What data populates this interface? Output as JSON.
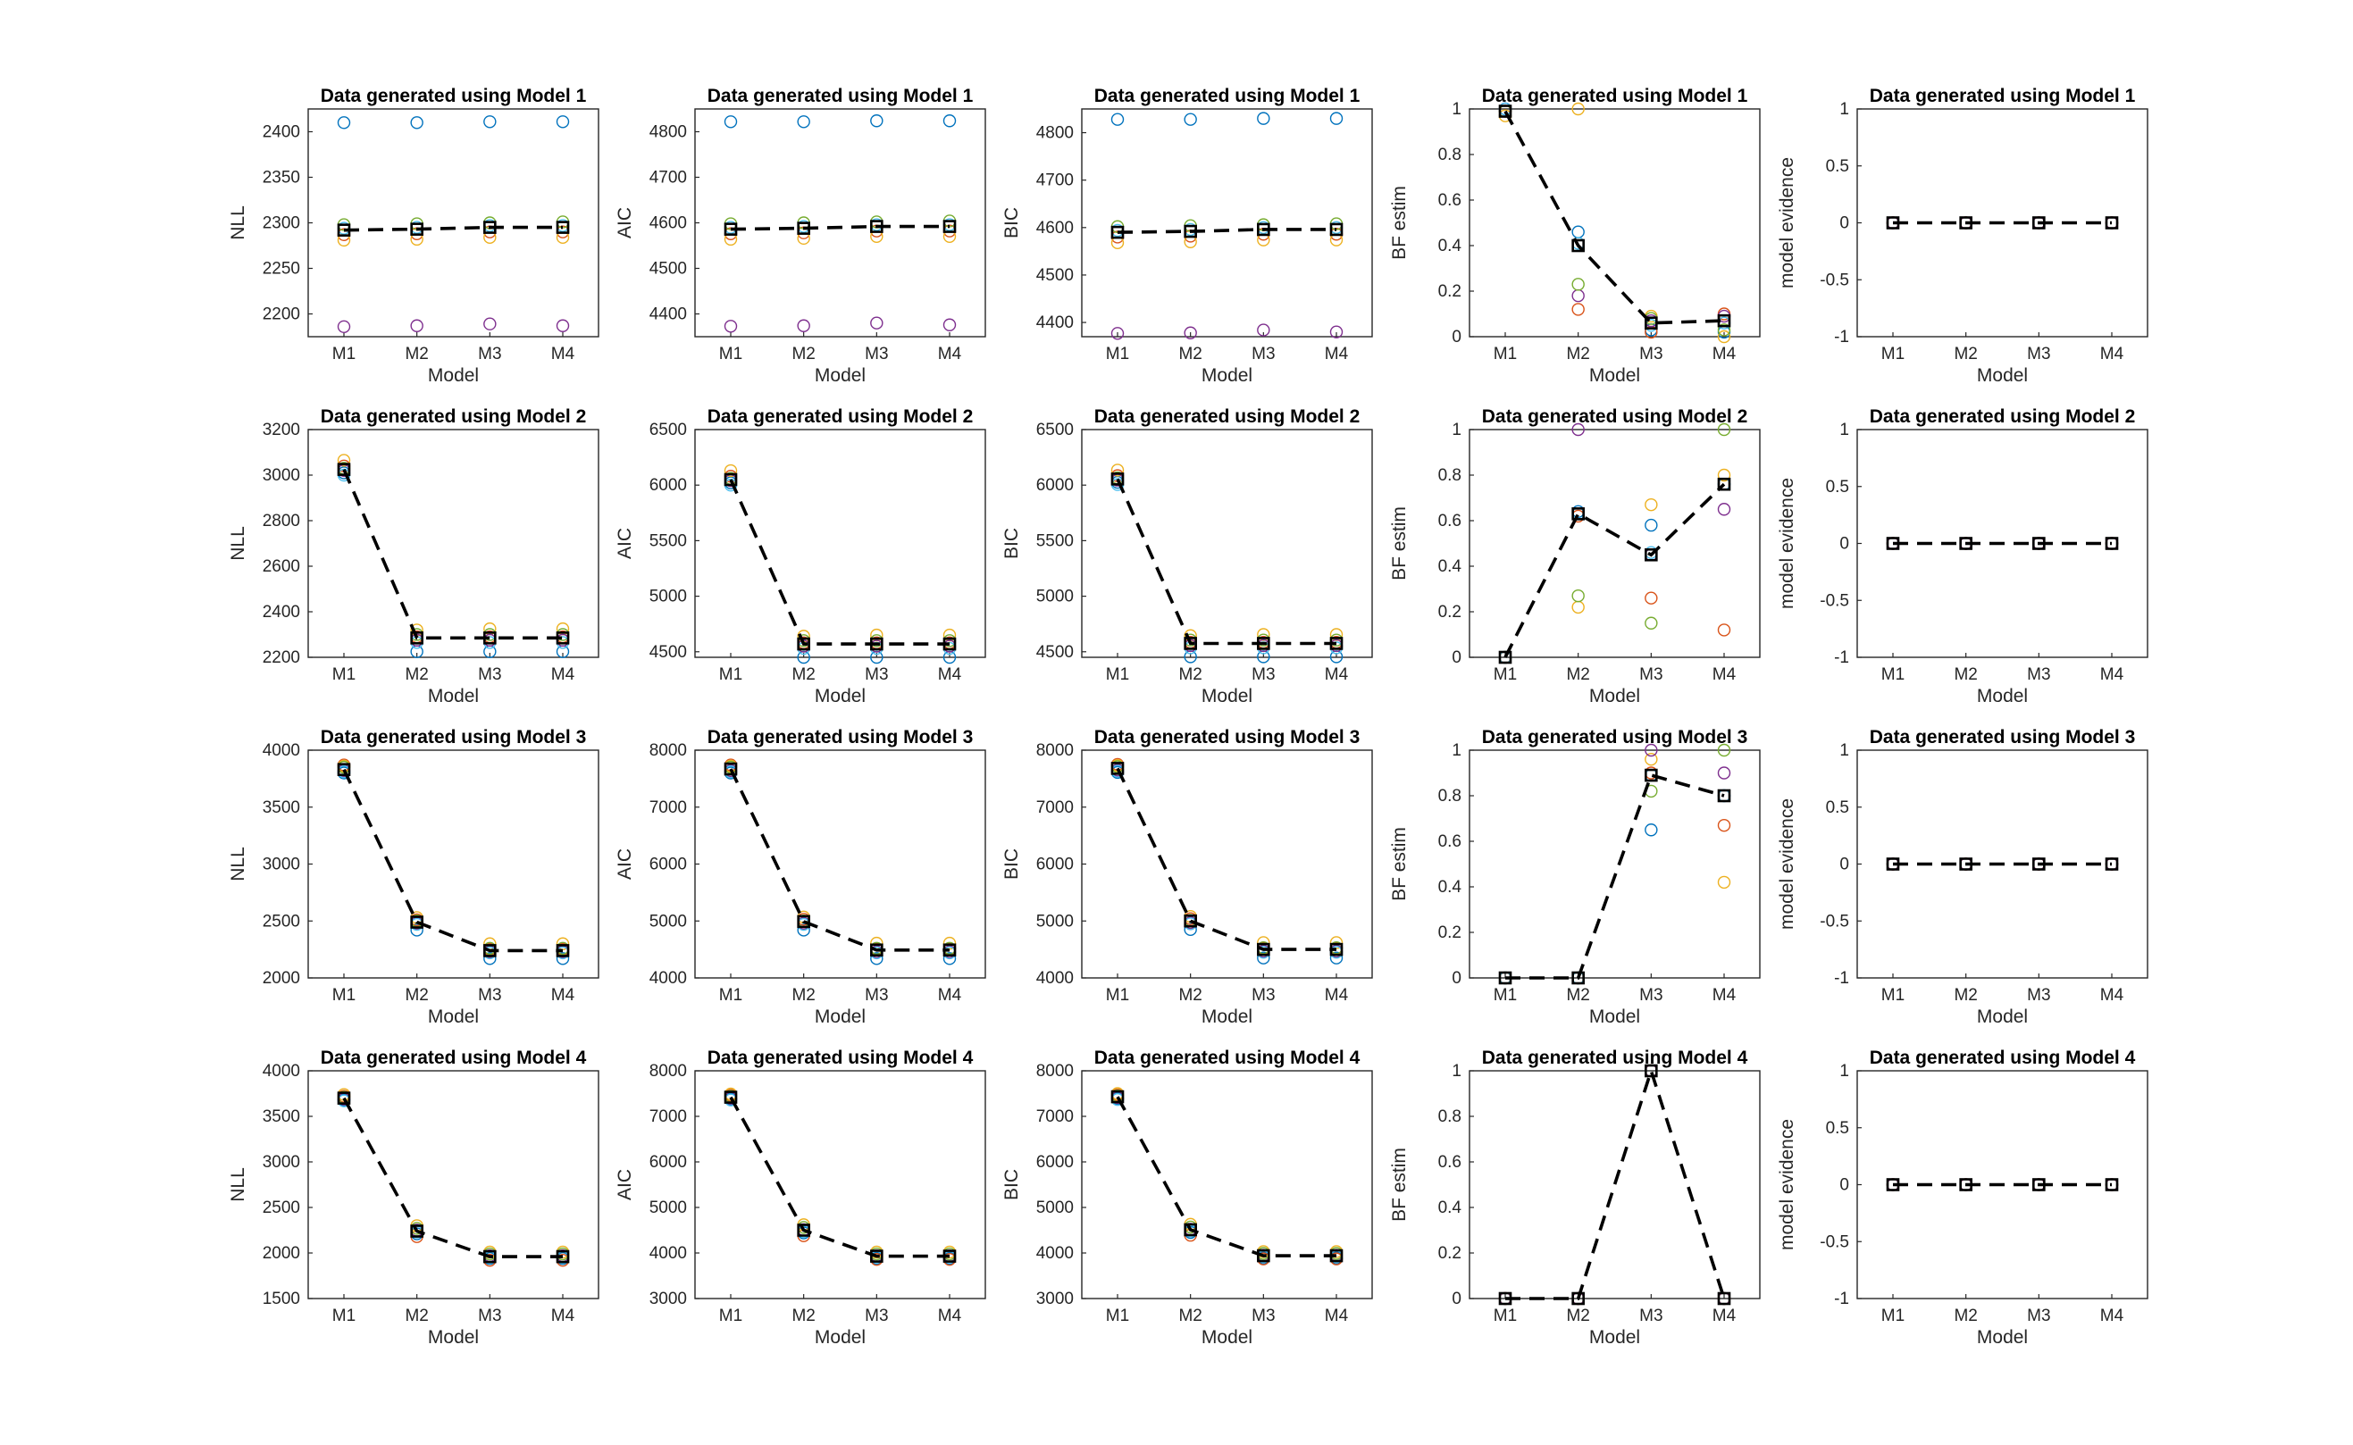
{
  "figure": {
    "title_template": "Data generated using Model",
    "xlabel": "Model",
    "categories": [
      "M1",
      "M2",
      "M3",
      "M4"
    ],
    "rows": [
      "1",
      "2",
      "3",
      "4"
    ],
    "series_colors": [
      "#0072BD",
      "#D95319",
      "#EDB120",
      "#7E2F8E",
      "#77AC30",
      "#4DBEEE"
    ],
    "mean_color": "#000000",
    "mean_marker": "square",
    "mean_line": "dashed"
  },
  "chart_data": [
    {
      "type": "scatter",
      "row": 1,
      "title": "Data generated using Model 1",
      "ylabel": "NLL",
      "xlabel": "Model",
      "categories": [
        "M1",
        "M2",
        "M3",
        "M4"
      ],
      "ylim": [
        2175,
        2425
      ],
      "yticks": [
        2200,
        2250,
        2300,
        2350,
        2400
      ],
      "mean": [
        2292,
        2293,
        2295,
        2295
      ],
      "points": [
        [
          2410,
          2410,
          2411,
          2411
        ],
        [
          2287,
          2288,
          2290,
          2290
        ],
        [
          2281,
          2282,
          2284,
          2284
        ],
        [
          2186,
          2187,
          2189,
          2187
        ],
        [
          2298,
          2299,
          2300,
          2301
        ],
        [
          2294,
          2295,
          2297,
          2297
        ]
      ]
    },
    {
      "type": "scatter",
      "row": 1,
      "title": "Data generated using Model 1",
      "ylabel": "AIC",
      "xlabel": "Model",
      "categories": [
        "M1",
        "M2",
        "M3",
        "M4"
      ],
      "ylim": [
        4350,
        4850
      ],
      "yticks": [
        4400,
        4500,
        4600,
        4700,
        4800
      ],
      "mean": [
        4586,
        4588,
        4592,
        4592
      ],
      "points": [
        [
          4822,
          4822,
          4824,
          4824
        ],
        [
          4576,
          4578,
          4582,
          4582
        ],
        [
          4564,
          4566,
          4570,
          4570
        ],
        [
          4373,
          4374,
          4380,
          4376
        ],
        [
          4598,
          4600,
          4602,
          4604
        ],
        [
          4590,
          4592,
          4596,
          4596
        ]
      ]
    },
    {
      "type": "scatter",
      "row": 1,
      "title": "Data generated using Model 1",
      "ylabel": "BIC",
      "xlabel": "Model",
      "categories": [
        "M1",
        "M2",
        "M3",
        "M4"
      ],
      "ylim": [
        4370,
        4850
      ],
      "yticks": [
        4400,
        4500,
        4600,
        4700,
        4800
      ],
      "mean": [
        4590,
        4592,
        4596,
        4596
      ],
      "points": [
        [
          4828,
          4828,
          4830,
          4830
        ],
        [
          4580,
          4582,
          4586,
          4586
        ],
        [
          4568,
          4570,
          4574,
          4574
        ],
        [
          4377,
          4378,
          4384,
          4380
        ],
        [
          4602,
          4604,
          4606,
          4608
        ],
        [
          4594,
          4596,
          4600,
          4600
        ]
      ]
    },
    {
      "type": "scatter",
      "row": 1,
      "title": "Data generated using Model 1",
      "ylabel": "BF estim",
      "xlabel": "Model",
      "categories": [
        "M1",
        "M2",
        "M3",
        "M4"
      ],
      "ylim": [
        0,
        1
      ],
      "yticks": [
        0,
        0.2,
        0.4,
        0.6,
        0.8,
        1
      ],
      "mean": [
        0.99,
        0.4,
        0.06,
        0.07
      ],
      "points": [
        [
          1.0,
          0.46,
          0.03,
          0.02
        ],
        [
          0.99,
          0.12,
          0.02,
          0.1
        ],
        [
          0.97,
          1.0,
          0.09,
          0.0
        ],
        [
          1.0,
          0.18,
          0.07,
          0.09
        ],
        [
          0.99,
          0.23,
          0.08,
          0.03
        ],
        [
          1.0,
          0.41,
          0.05,
          0.06
        ]
      ]
    },
    {
      "type": "scatter",
      "row": 1,
      "title": "Data generated using Model 1",
      "ylabel": "model evidence",
      "xlabel": "Model",
      "categories": [
        "M1",
        "M2",
        "M3",
        "M4"
      ],
      "ylim": [
        -1,
        1
      ],
      "yticks": [
        -1,
        -0.5,
        0,
        0.5,
        1
      ],
      "mean": [
        0,
        0,
        0,
        0
      ],
      "points": [
        [
          0,
          0,
          0,
          0
        ],
        [
          0,
          0,
          0,
          0
        ],
        [
          0,
          0,
          0,
          0
        ],
        [
          0,
          0,
          0,
          0
        ]
      ]
    },
    {
      "type": "scatter",
      "row": 2,
      "title": "Data generated using Model 2",
      "ylabel": "NLL",
      "xlabel": "Model",
      "categories": [
        "M1",
        "M2",
        "M3",
        "M4"
      ],
      "ylim": [
        2200,
        3200
      ],
      "yticks": [
        2200,
        2400,
        2600,
        2800,
        3000,
        3200
      ],
      "mean": [
        3025,
        2285,
        2285,
        2285
      ],
      "points": [
        [
          3010,
          2225,
          2225,
          2225
        ],
        [
          3040,
          2290,
          2290,
          2290
        ],
        [
          3065,
          2320,
          2325,
          2325
        ],
        [
          3020,
          2275,
          2275,
          2275
        ],
        [
          3030,
          2300,
          2300,
          2300
        ],
        [
          3000,
          2265,
          2265,
          2265
        ]
      ]
    },
    {
      "type": "scatter",
      "row": 2,
      "title": "Data generated using Model 2",
      "ylabel": "AIC",
      "xlabel": "Model",
      "categories": [
        "M1",
        "M2",
        "M3",
        "M4"
      ],
      "ylim": [
        4450,
        6500
      ],
      "yticks": [
        4500,
        5000,
        5500,
        6000,
        6500
      ],
      "mean": [
        6050,
        4570,
        4570,
        4570
      ],
      "points": [
        [
          6020,
          4450,
          4450,
          4450
        ],
        [
          6080,
          4580,
          4580,
          4580
        ],
        [
          6130,
          4640,
          4650,
          4650
        ],
        [
          6040,
          4550,
          4550,
          4550
        ],
        [
          6060,
          4600,
          4600,
          4600
        ],
        [
          6000,
          4530,
          4530,
          4530
        ]
      ]
    },
    {
      "type": "scatter",
      "row": 2,
      "title": "Data generated using Model 2",
      "ylabel": "BIC",
      "xlabel": "Model",
      "categories": [
        "M1",
        "M2",
        "M3",
        "M4"
      ],
      "ylim": [
        4450,
        6500
      ],
      "yticks": [
        4500,
        5000,
        5500,
        6000,
        6500
      ],
      "mean": [
        6055,
        4575,
        4575,
        4575
      ],
      "points": [
        [
          6025,
          4455,
          4455,
          4455
        ],
        [
          6085,
          4585,
          4585,
          4585
        ],
        [
          6135,
          4645,
          4655,
          4655
        ],
        [
          6045,
          4555,
          4555,
          4555
        ],
        [
          6065,
          4605,
          4605,
          4605
        ],
        [
          6005,
          4535,
          4535,
          4535
        ]
      ]
    },
    {
      "type": "scatter",
      "row": 2,
      "title": "Data generated using Model 2",
      "ylabel": "BF estim",
      "xlabel": "Model",
      "categories": [
        "M1",
        "M2",
        "M3",
        "M4"
      ],
      "ylim": [
        0,
        1
      ],
      "yticks": [
        0,
        0.2,
        0.4,
        0.6,
        0.8,
        1
      ],
      "mean": [
        0.0,
        0.63,
        0.45,
        0.76
      ],
      "points": [
        [
          0,
          0.64,
          0.58,
          0.76
        ],
        [
          0,
          0.62,
          0.26,
          0.12
        ],
        [
          0,
          0.22,
          0.67,
          0.8
        ],
        [
          0,
          1.0,
          0.45,
          0.65
        ],
        [
          0,
          0.27,
          0.15,
          1.0
        ],
        [
          0,
          0.63,
          0.46,
          0.76
        ]
      ]
    },
    {
      "type": "scatter",
      "row": 2,
      "title": "Data generated using Model 2",
      "ylabel": "model evidence",
      "xlabel": "Model",
      "categories": [
        "M1",
        "M2",
        "M3",
        "M4"
      ],
      "ylim": [
        -1,
        1
      ],
      "yticks": [
        -1,
        -0.5,
        0,
        0.5,
        1
      ],
      "mean": [
        0,
        0,
        0,
        0
      ],
      "points": [
        [
          0,
          0,
          0,
          0
        ],
        [
          0,
          0,
          0,
          0
        ],
        [
          0,
          0,
          0,
          0
        ],
        [
          0,
          0,
          0,
          0
        ]
      ]
    },
    {
      "type": "scatter",
      "row": 3,
      "title": "Data generated using Model 3",
      "ylabel": "NLL",
      "xlabel": "Model",
      "categories": [
        "M1",
        "M2",
        "M3",
        "M4"
      ],
      "ylim": [
        2000,
        4000
      ],
      "yticks": [
        2000,
        2500,
        3000,
        3500,
        4000
      ],
      "mean": [
        3830,
        2490,
        2240,
        2240
      ],
      "points": [
        [
          3800,
          2420,
          2170,
          2170
        ],
        [
          3870,
          2510,
          2250,
          2250
        ],
        [
          3860,
          2530,
          2300,
          2300
        ],
        [
          3820,
          2480,
          2230,
          2230
        ],
        [
          3850,
          2500,
          2260,
          2260
        ],
        [
          3810,
          2470,
          2220,
          2220
        ]
      ]
    },
    {
      "type": "scatter",
      "row": 3,
      "title": "Data generated using Model 3",
      "ylabel": "AIC",
      "xlabel": "Model",
      "categories": [
        "M1",
        "M2",
        "M3",
        "M4"
      ],
      "ylim": [
        4000,
        8000
      ],
      "yticks": [
        4000,
        5000,
        6000,
        7000,
        8000
      ],
      "mean": [
        7670,
        4990,
        4490,
        4490
      ],
      "points": [
        [
          7600,
          4840,
          4340,
          4340
        ],
        [
          7740,
          5030,
          4510,
          4510
        ],
        [
          7720,
          5070,
          4610,
          4610
        ],
        [
          7640,
          4960,
          4460,
          4460
        ],
        [
          7700,
          5000,
          4520,
          4520
        ],
        [
          7620,
          4940,
          4440,
          4440
        ]
      ]
    },
    {
      "type": "scatter",
      "row": 3,
      "title": "Data generated using Model 3",
      "ylabel": "BIC",
      "xlabel": "Model",
      "categories": [
        "M1",
        "M2",
        "M3",
        "M4"
      ],
      "ylim": [
        4000,
        8000
      ],
      "yticks": [
        4000,
        5000,
        6000,
        7000,
        8000
      ],
      "mean": [
        7680,
        5000,
        4500,
        4500
      ],
      "points": [
        [
          7610,
          4850,
          4350,
          4350
        ],
        [
          7750,
          5040,
          4520,
          4520
        ],
        [
          7730,
          5080,
          4620,
          4620
        ],
        [
          7650,
          4970,
          4470,
          4470
        ],
        [
          7710,
          5010,
          4530,
          4530
        ],
        [
          7630,
          4950,
          4450,
          4450
        ]
      ]
    },
    {
      "type": "scatter",
      "row": 3,
      "title": "Data generated using Model 3",
      "ylabel": "BF estim",
      "xlabel": "Model",
      "categories": [
        "M1",
        "M2",
        "M3",
        "M4"
      ],
      "ylim": [
        0,
        1
      ],
      "yticks": [
        0,
        0.2,
        0.4,
        0.6,
        0.8,
        1
      ],
      "mean": [
        0.0,
        0.0,
        0.89,
        0.8
      ],
      "points": [
        [
          0,
          0,
          0.65,
          0.8
        ],
        [
          0,
          0,
          0.9,
          0.67
        ],
        [
          0,
          0,
          0.96,
          0.42
        ],
        [
          0,
          0,
          1.0,
          0.9
        ],
        [
          0,
          0,
          0.82,
          1.0
        ],
        [
          0,
          0,
          0.89,
          0.8
        ]
      ]
    },
    {
      "type": "scatter",
      "row": 3,
      "title": "Data generated using Model 3",
      "ylabel": "model evidence",
      "xlabel": "Model",
      "categories": [
        "M1",
        "M2",
        "M3",
        "M4"
      ],
      "ylim": [
        -1,
        1
      ],
      "yticks": [
        -1,
        -0.5,
        0,
        0.5,
        1
      ],
      "mean": [
        0,
        0,
        0,
        0
      ],
      "points": [
        [
          0,
          0,
          0,
          0
        ],
        [
          0,
          0,
          0,
          0
        ],
        [
          0,
          0,
          0,
          0
        ],
        [
          0,
          0,
          0,
          0
        ]
      ]
    },
    {
      "type": "scatter",
      "row": 4,
      "title": "Data generated using Model 4",
      "ylabel": "NLL",
      "xlabel": "Model",
      "categories": [
        "M1",
        "M2",
        "M3",
        "M4"
      ],
      "ylim": [
        1500,
        4000
      ],
      "yticks": [
        1500,
        2000,
        2500,
        3000,
        3500,
        4000
      ],
      "mean": [
        3700,
        2240,
        1960,
        1960
      ],
      "points": [
        [
          3680,
          2210,
          1940,
          1940
        ],
        [
          3720,
          2180,
          1920,
          1920
        ],
        [
          3740,
          2300,
          2010,
          2010
        ],
        [
          3690,
          2250,
          1970,
          1970
        ],
        [
          3710,
          2270,
          1990,
          1990
        ],
        [
          3670,
          2230,
          1950,
          1950
        ]
      ]
    },
    {
      "type": "scatter",
      "row": 4,
      "title": "Data generated using Model 4",
      "ylabel": "AIC",
      "xlabel": "Model",
      "categories": [
        "M1",
        "M2",
        "M3",
        "M4"
      ],
      "ylim": [
        3000,
        8000
      ],
      "yticks": [
        3000,
        4000,
        5000,
        6000,
        7000,
        8000
      ],
      "mean": [
        7420,
        4500,
        3930,
        3930
      ],
      "points": [
        [
          7380,
          4440,
          3880,
          3880
        ],
        [
          7460,
          4380,
          3860,
          3860
        ],
        [
          7490,
          4620,
          4020,
          4020
        ],
        [
          7400,
          4510,
          3940,
          3940
        ],
        [
          7440,
          4560,
          3980,
          3980
        ],
        [
          7360,
          4470,
          3910,
          3910
        ]
      ]
    },
    {
      "type": "scatter",
      "row": 4,
      "title": "Data generated using Model 4",
      "ylabel": "BIC",
      "xlabel": "Model",
      "categories": [
        "M1",
        "M2",
        "M3",
        "M4"
      ],
      "ylim": [
        3000,
        8000
      ],
      "yticks": [
        3000,
        4000,
        5000,
        6000,
        7000,
        8000
      ],
      "mean": [
        7430,
        4510,
        3940,
        3940
      ],
      "points": [
        [
          7390,
          4450,
          3890,
          3890
        ],
        [
          7470,
          4390,
          3870,
          3870
        ],
        [
          7500,
          4630,
          4030,
          4030
        ],
        [
          7410,
          4520,
          3950,
          3950
        ],
        [
          7450,
          4570,
          3990,
          3990
        ],
        [
          7370,
          4480,
          3920,
          3920
        ]
      ]
    },
    {
      "type": "scatter",
      "row": 4,
      "title": "Data generated using Model 4",
      "ylabel": "BF estim",
      "xlabel": "Model",
      "categories": [
        "M1",
        "M2",
        "M3",
        "M4"
      ],
      "ylim": [
        0,
        1
      ],
      "yticks": [
        0,
        0.2,
        0.4,
        0.6,
        0.8,
        1
      ],
      "mean": [
        0.0,
        0.0,
        1.0,
        0.0
      ],
      "points": [
        [
          0,
          0,
          1,
          0
        ],
        [
          0,
          0,
          1,
          0
        ],
        [
          0,
          0,
          1,
          0
        ],
        [
          0,
          0,
          1,
          0
        ]
      ]
    },
    {
      "type": "scatter",
      "row": 4,
      "title": "Data generated using Model 4",
      "ylabel": "model evidence",
      "xlabel": "Model",
      "categories": [
        "M1",
        "M2",
        "M3",
        "M4"
      ],
      "ylim": [
        -1,
        1
      ],
      "yticks": [
        -1,
        -0.5,
        0,
        0.5,
        1
      ],
      "mean": [
        0,
        0,
        0,
        0
      ],
      "points": [
        [
          0,
          0,
          0,
          0
        ],
        [
          0,
          0,
          0,
          0
        ],
        [
          0,
          0,
          0,
          0
        ],
        [
          0,
          0,
          0,
          0
        ]
      ]
    }
  ]
}
